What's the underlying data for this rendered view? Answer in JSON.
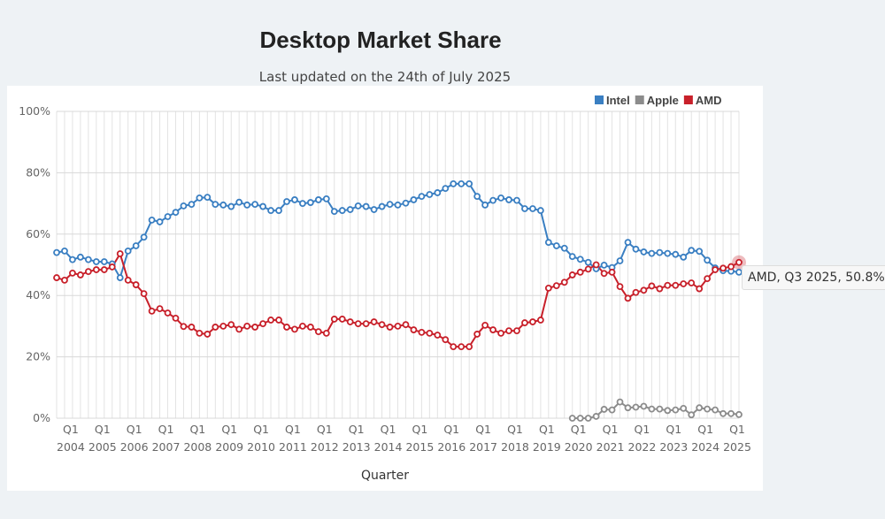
{
  "chart_data": {
    "type": "line",
    "title": "Desktop Market Share",
    "subtitle": "Last updated on the 24th of July 2025",
    "xlabel": "Quarter",
    "ylabel": "",
    "ylim": [
      0,
      100
    ],
    "y_ticks": [
      "0%",
      "20%",
      "40%",
      "60%",
      "80%",
      "100%"
    ],
    "y_tick_values": [
      0,
      20,
      40,
      60,
      80,
      100
    ],
    "x_start": {
      "year": 2004,
      "quarter": 1
    },
    "x_tick_quarter": "Q1",
    "x_tick_years": [
      "2004",
      "2005",
      "2006",
      "2007",
      "2008",
      "2009",
      "2010",
      "2011",
      "2012",
      "2013",
      "2014",
      "2015",
      "2016",
      "2017",
      "2018",
      "2019",
      "2020",
      "2021",
      "2022",
      "2023",
      "2024",
      "2025"
    ],
    "grid": true,
    "legend_position": "top-right",
    "series": [
      {
        "name": "Intel",
        "color": "#3a7fc2",
        "values": [
          54,
          54.5,
          51.7,
          52.5,
          51.7,
          51,
          51,
          50.3,
          45.8,
          54.5,
          56.2,
          59,
          64.6,
          64,
          65.7,
          67.1,
          69.2,
          69.7,
          71.8,
          72,
          69.7,
          69.5,
          69,
          70.4,
          69.5,
          69.7,
          69,
          67.7,
          67.7,
          70.6,
          71.2,
          70,
          70.3,
          71.2,
          71.5,
          67.4,
          67.7,
          68,
          69.2,
          69,
          68,
          69,
          69.7,
          69.5,
          70.1,
          71.2,
          72.3,
          72.9,
          73.5,
          74.9,
          76.4,
          76.4,
          76.4,
          72.3,
          69.5,
          71,
          71.8,
          71.2,
          71,
          68.3,
          68.3,
          67.7,
          57.3,
          56.2,
          55.4,
          52.7,
          51.8,
          50.8,
          48.7,
          49.9,
          49.1,
          51.3,
          57.3,
          55.1,
          54.2,
          53.7,
          54,
          53.7,
          53.4,
          52.5,
          54.7,
          54.4,
          51.5,
          49,
          48.1,
          47.9,
          47.6
        ]
      },
      {
        "name": "Apple",
        "color": "#8c8c8c",
        "values": [
          null,
          null,
          null,
          null,
          null,
          null,
          null,
          null,
          null,
          null,
          null,
          null,
          null,
          null,
          null,
          null,
          null,
          null,
          null,
          null,
          null,
          null,
          null,
          null,
          null,
          null,
          null,
          null,
          null,
          null,
          null,
          null,
          null,
          null,
          null,
          null,
          null,
          null,
          null,
          null,
          null,
          null,
          null,
          null,
          null,
          null,
          null,
          null,
          null,
          null,
          null,
          null,
          null,
          null,
          null,
          null,
          null,
          null,
          null,
          null,
          null,
          null,
          null,
          null,
          null,
          0,
          0,
          0,
          0.6,
          2.9,
          2.7,
          5.3,
          3.4,
          3.6,
          3.9,
          3.0,
          3.0,
          2.5,
          2.7,
          3.2,
          1.1,
          3.4,
          3.0,
          2.7,
          1.5,
          1.5,
          1.2
        ]
      },
      {
        "name": "AMD",
        "color": "#c8202a",
        "values": [
          45.8,
          45,
          47.3,
          46.7,
          47.8,
          48.4,
          48.4,
          49.3,
          53.6,
          45,
          43.5,
          40.6,
          34.9,
          35.7,
          34.3,
          32.6,
          29.9,
          29.7,
          27.7,
          27.4,
          29.7,
          30,
          30.5,
          29,
          30,
          29.7,
          30.8,
          32,
          32,
          29.7,
          29,
          30,
          29.7,
          28.2,
          27.7,
          32.3,
          32.3,
          31.4,
          30.8,
          30.8,
          31.4,
          30.5,
          29.7,
          30,
          30.5,
          28.8,
          28,
          27.7,
          27.1,
          25.6,
          23.3,
          23.3,
          23.3,
          27.4,
          30.3,
          28.8,
          27.7,
          28.5,
          28.5,
          31.1,
          31.4,
          32,
          42.4,
          43.2,
          44.3,
          46.7,
          47.6,
          48.6,
          50,
          47.2,
          47.6,
          42.9,
          39.1,
          41,
          41.7,
          43.1,
          42.2,
          43.3,
          43.3,
          43.8,
          44.1,
          42.2,
          45.5,
          48.4,
          48.9,
          49.4,
          50.8
        ]
      }
    ],
    "tooltip": "AMD, Q3 2025, 50.8%"
  }
}
